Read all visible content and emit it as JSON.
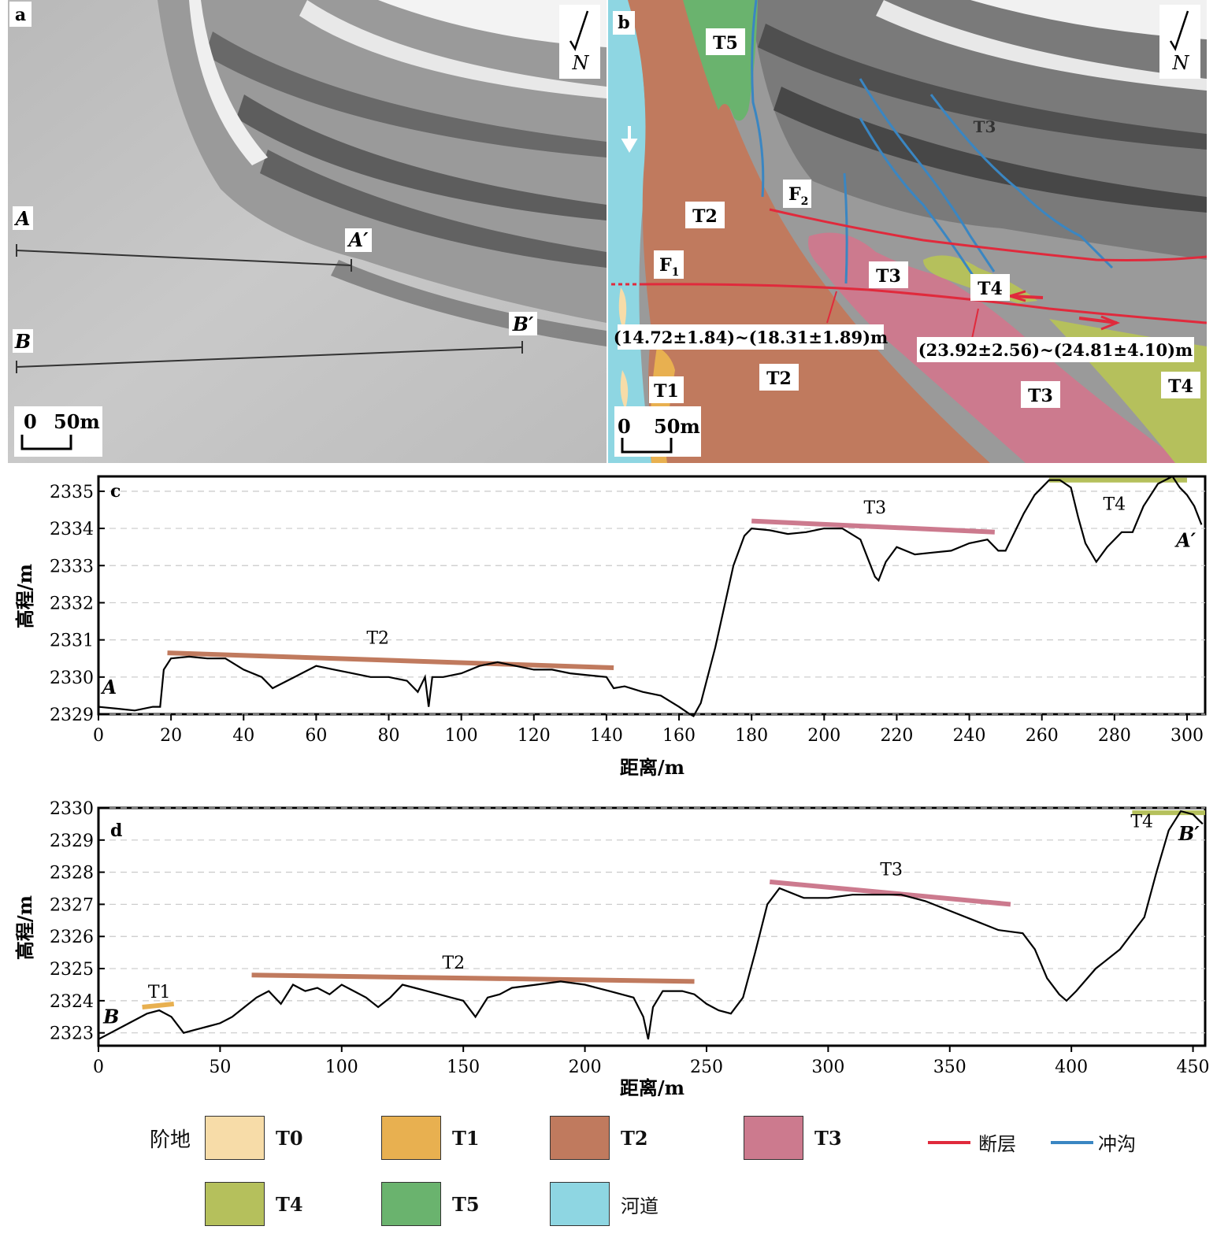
{
  "panel_a": {
    "label": "a",
    "north": "N",
    "scale": {
      "zero": "0",
      "value": "50m"
    },
    "profile_A": {
      "start": "A",
      "end": "A′"
    },
    "profile_B": {
      "start": "B",
      "end": "B′"
    }
  },
  "panel_b": {
    "label": "b",
    "north": "N",
    "scale": {
      "zero": "0",
      "value": "50m"
    },
    "units": [
      "T5",
      "T2",
      "T2",
      "T3",
      "T3",
      "T4",
      "T4",
      "T1",
      "T3"
    ],
    "faults": {
      "f1": "F",
      "f1_sub": "1",
      "f2": "F",
      "f2_sub": "2"
    },
    "offset_left": "(14.72±1.84)~(18.31±1.89)m",
    "offset_right": "(23.92±2.56)~(24.81±4.10)m"
  },
  "chart_data": [
    {
      "type": "line",
      "panel": "c",
      "ylabel": "高程/m",
      "xlabel": "距离/m",
      "xlim": [
        0,
        305
      ],
      "ylim": [
        2329,
        2335.4
      ],
      "xticks": [
        0,
        20,
        40,
        60,
        80,
        100,
        120,
        140,
        160,
        180,
        200,
        220,
        240,
        260,
        280,
        300
      ],
      "yticks": [
        2329,
        2330,
        2331,
        2332,
        2333,
        2334,
        2335
      ],
      "grid": "horizontal dashed",
      "start_label": "A",
      "end_label": "A′",
      "series": [
        {
          "x": [
            0,
            5,
            10,
            15,
            17,
            18,
            20,
            25,
            30,
            35,
            40,
            45,
            48,
            55,
            60,
            65,
            70,
            75,
            80,
            85,
            88,
            90,
            91,
            92,
            95,
            100,
            105,
            110,
            115,
            120,
            125,
            130,
            135,
            140,
            142,
            145,
            150,
            155,
            160,
            163,
            164,
            166,
            170,
            175,
            178,
            180,
            185,
            190,
            195,
            200,
            205,
            210,
            212,
            214,
            215,
            217,
            220,
            225,
            230,
            235,
            240,
            245,
            248,
            250,
            255,
            258,
            262,
            265,
            268,
            270,
            272,
            275,
            278,
            282,
            285,
            288,
            292,
            296,
            298,
            300,
            302,
            304
          ],
          "y": [
            2329.2,
            2329.15,
            2329.1,
            2329.2,
            2329.2,
            2330.2,
            2330.5,
            2330.55,
            2330.5,
            2330.5,
            2330.2,
            2330.0,
            2329.7,
            2330.05,
            2330.3,
            2330.2,
            2330.1,
            2330.0,
            2330.0,
            2329.9,
            2329.6,
            2330.0,
            2329.2,
            2330.0,
            2330.0,
            2330.1,
            2330.3,
            2330.4,
            2330.3,
            2330.2,
            2330.2,
            2330.1,
            2330.05,
            2330.0,
            2329.7,
            2329.75,
            2329.6,
            2329.5,
            2329.2,
            2329.0,
            2328.95,
            2329.3,
            2330.8,
            2333.0,
            2333.8,
            2334.0,
            2333.95,
            2333.85,
            2333.9,
            2334.0,
            2334.0,
            2333.7,
            2333.2,
            2332.7,
            2332.6,
            2333.1,
            2333.5,
            2333.3,
            2333.35,
            2333.4,
            2333.6,
            2333.7,
            2333.4,
            2333.4,
            2334.4,
            2334.9,
            2335.3,
            2335.3,
            2335.1,
            2334.3,
            2333.6,
            2333.1,
            2333.5,
            2333.9,
            2333.9,
            2334.6,
            2335.2,
            2335.4,
            2335.1,
            2334.9,
            2334.6,
            2334.1
          ]
        }
      ],
      "annotations": [
        {
          "label": "T2",
          "x": [
            19,
            142
          ],
          "y": [
            2330.65,
            2330.25
          ],
          "color": "#c07a5e"
        },
        {
          "label": "T3",
          "x": [
            180,
            247
          ],
          "y": [
            2334.2,
            2333.9
          ],
          "color": "#cc7a8e"
        },
        {
          "label": "T4",
          "x": [
            262,
            300
          ],
          "y": [
            2335.3,
            2335.3
          ],
          "color": "#b5c05c"
        }
      ]
    },
    {
      "type": "line",
      "panel": "d",
      "ylabel": "高程/m",
      "xlabel": "距离/m",
      "xlim": [
        0,
        455
      ],
      "ylim": [
        2322.6,
        2330
      ],
      "xticks": [
        0,
        50,
        100,
        150,
        200,
        250,
        300,
        350,
        400,
        450
      ],
      "yticks": [
        2323,
        2324,
        2325,
        2326,
        2327,
        2328,
        2329,
        2330
      ],
      "grid": "horizontal dashed",
      "start_label": "B",
      "end_label": "B′",
      "series": [
        {
          "x": [
            0,
            5,
            10,
            15,
            20,
            25,
            30,
            35,
            40,
            45,
            50,
            55,
            60,
            65,
            70,
            75,
            80,
            85,
            90,
            95,
            100,
            105,
            110,
            115,
            120,
            125,
            130,
            135,
            140,
            145,
            150,
            155,
            160,
            165,
            170,
            180,
            190,
            200,
            210,
            215,
            220,
            224,
            226,
            228,
            232,
            240,
            245,
            250,
            255,
            260,
            265,
            270,
            275,
            280,
            290,
            300,
            310,
            320,
            330,
            340,
            350,
            360,
            370,
            380,
            385,
            390,
            395,
            398,
            402,
            410,
            420,
            430,
            435,
            440,
            445,
            450,
            454
          ],
          "y": [
            2322.8,
            2323.0,
            2323.2,
            2323.4,
            2323.6,
            2323.7,
            2323.5,
            2323.0,
            2323.1,
            2323.2,
            2323.3,
            2323.5,
            2323.8,
            2324.1,
            2324.3,
            2323.9,
            2324.5,
            2324.3,
            2324.4,
            2324.2,
            2324.5,
            2324.3,
            2324.1,
            2323.8,
            2324.1,
            2324.5,
            2324.4,
            2324.3,
            2324.2,
            2324.1,
            2324.0,
            2323.5,
            2324.1,
            2324.2,
            2324.4,
            2324.5,
            2324.6,
            2324.5,
            2324.3,
            2324.2,
            2324.1,
            2323.5,
            2322.8,
            2323.8,
            2324.3,
            2324.3,
            2324.2,
            2323.9,
            2323.7,
            2323.6,
            2324.1,
            2325.5,
            2327.0,
            2327.5,
            2327.2,
            2327.2,
            2327.3,
            2327.3,
            2327.3,
            2327.1,
            2326.8,
            2326.5,
            2326.2,
            2326.1,
            2325.6,
            2324.7,
            2324.2,
            2324.0,
            2324.3,
            2325.0,
            2325.6,
            2326.6,
            2328.0,
            2329.3,
            2329.9,
            2329.8,
            2329.5
          ]
        }
      ],
      "annotations": [
        {
          "label": "T1",
          "x": [
            18,
            31
          ],
          "y": [
            2323.8,
            2323.9
          ],
          "color": "#e8b050"
        },
        {
          "label": "T2",
          "x": [
            63,
            245
          ],
          "y": [
            2324.8,
            2324.6
          ],
          "color": "#c07a5e"
        },
        {
          "label": "T3",
          "x": [
            276,
            375
          ],
          "y": [
            2327.7,
            2327.0
          ],
          "color": "#cc7a8e"
        },
        {
          "label": "T4",
          "x": [
            425,
            455
          ],
          "y": [
            2329.85,
            2329.85
          ],
          "color": "#b5c05c"
        }
      ]
    }
  ],
  "legend": {
    "title": "阶地",
    "items": [
      {
        "label": "T0",
        "color": "#f7dca8"
      },
      {
        "label": "T1",
        "color": "#e8b050"
      },
      {
        "label": "T2",
        "color": "#c07a5e"
      },
      {
        "label": "T3",
        "color": "#cc7a8e"
      },
      {
        "label": "T4",
        "color": "#b5c05c"
      },
      {
        "label": "T5",
        "color": "#6ab36e"
      },
      {
        "label": "河道",
        "color": "#8ed6e2"
      }
    ],
    "lines": [
      {
        "label": "断层",
        "color": "#e02a3c"
      },
      {
        "label": "冲沟",
        "color": "#3a86c2"
      }
    ]
  }
}
